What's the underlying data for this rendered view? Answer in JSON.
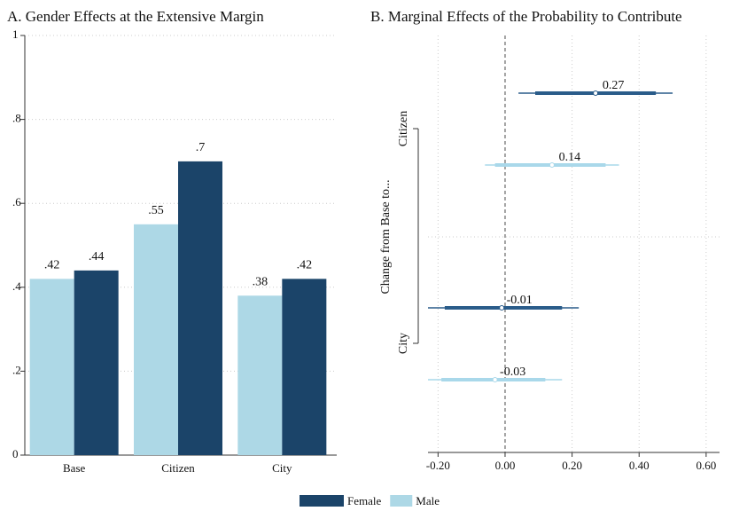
{
  "chart_data": [
    {
      "type": "bar",
      "title": "A. Gender Effects at the Extensive Margin",
      "categories": [
        "Base",
        "Citizen",
        "City"
      ],
      "series": [
        {
          "name": "Male",
          "color": "#add8e6",
          "values": [
            0.42,
            0.55,
            0.38
          ],
          "value_labels": [
            ".42",
            ".55",
            ".38"
          ]
        },
        {
          "name": "Female",
          "color": "#1b4469",
          "values": [
            0.44,
            0.7,
            0.42
          ],
          "value_labels": [
            ".44",
            ".7",
            ".42"
          ]
        }
      ],
      "legend_order": [
        "Female",
        "Male"
      ],
      "ylim": [
        0,
        1
      ],
      "yticks": [
        0,
        {
          "value": 0.2,
          "label": ".2"
        },
        {
          "value": 0.4,
          "label": ".4"
        },
        {
          "value": 0.6,
          "label": ".6"
        },
        {
          "value": 0.8,
          "label": ".8"
        },
        1
      ],
      "grid": true,
      "legend": "bottom"
    },
    {
      "type": "coefficient",
      "title": "B. Marginal Effects of the Probability to Contribute",
      "y_label": "Change from Base to...",
      "categories": [
        "Citizen",
        "City"
      ],
      "series": [
        {
          "color": "#2a5c8a",
          "values": [
            0.27,
            -0.01
          ],
          "ci_low": [
            0.04,
            -0.23
          ],
          "ci_high": [
            0.5,
            0.22
          ],
          "ci_inner_low": [
            0.09,
            -0.18
          ],
          "ci_inner_high": [
            0.45,
            0.17
          ]
        },
        {
          "color": "#a9d8ea",
          "values": [
            0.14,
            -0.03
          ],
          "ci_low": [
            -0.06,
            -0.23
          ],
          "ci_high": [
            0.34,
            0.17
          ],
          "ci_inner_low": [
            -0.03,
            -0.19
          ],
          "ci_inner_high": [
            0.3,
            0.12
          ]
        }
      ],
      "xlim": [
        -0.23,
        0.64
      ],
      "xticks": [
        {
          "value": -0.2,
          "label": "-0.20"
        },
        {
          "value": 0,
          "label": "0.00"
        },
        {
          "value": 0.2,
          "label": "0.20"
        },
        {
          "value": 0.4,
          "label": "0.40"
        },
        {
          "value": 0.6,
          "label": "0.60"
        }
      ],
      "grid": true,
      "zero_line": true
    }
  ]
}
